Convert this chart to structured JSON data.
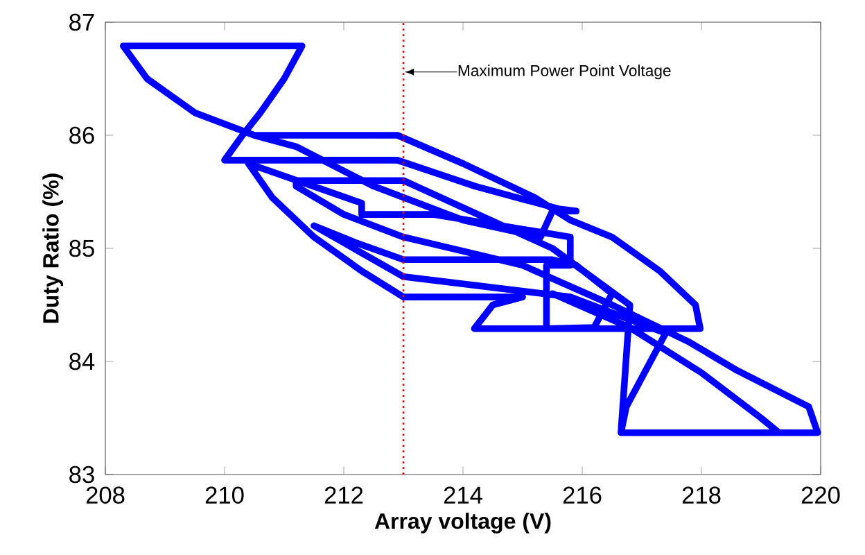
{
  "chart_data": {
    "type": "line",
    "xlabel": "Array voltage (V)",
    "ylabel": "Duty Ratio (%)",
    "xlim": [
      208,
      220
    ],
    "ylim": [
      83,
      87
    ],
    "xticks": [
      208,
      210,
      212,
      214,
      216,
      218,
      220
    ],
    "yticks": [
      83,
      84,
      85,
      86,
      87
    ],
    "grid": false,
    "series": [
      {
        "color": "#0000ff",
        "x": [
          212.9,
          210.5,
          209.5,
          208.7,
          208.3,
          211.3,
          211.0,
          210.6,
          210.3,
          210.0,
          212.9,
          214.2,
          215.6,
          215.9,
          215.5,
          215.3,
          214.0,
          212.5,
          211.2,
          210.5,
          212.9,
          214.0,
          215.2,
          215.8,
          216.5,
          217.3,
          217.9,
          217.98,
          216.0,
          214.19,
          214.5,
          215.0,
          213.0,
          212.3,
          211.5,
          210.8,
          210.4,
          212.3,
          212.3,
          213.5,
          215.8,
          215.8,
          215.4,
          215.4,
          216.2,
          216.5,
          215.9,
          215.5,
          213.0,
          212.2,
          211.5,
          213.0,
          215.8,
          217.4,
          216.74,
          216.65,
          219.95,
          219.8,
          218.6,
          217.8,
          216.5,
          215.0,
          213.0,
          212.0,
          211.2,
          211.2,
          213.0,
          215.5,
          216.8,
          216.65,
          219.3,
          219.0,
          218.0,
          216.8,
          215.5
        ],
        "values": [
          86.0,
          86.0,
          86.2,
          86.5,
          86.79,
          86.79,
          86.5,
          86.2,
          86.0,
          85.78,
          85.78,
          85.55,
          85.35,
          85.33,
          85.33,
          85.1,
          85.25,
          85.55,
          85.9,
          86.0,
          86.0,
          85.75,
          85.45,
          85.25,
          85.1,
          84.8,
          84.5,
          84.29,
          84.29,
          84.29,
          84.5,
          84.57,
          84.57,
          84.8,
          85.1,
          85.45,
          85.75,
          85.4,
          85.3,
          85.3,
          85.1,
          84.85,
          84.85,
          84.29,
          84.3,
          84.6,
          84.85,
          84.9,
          84.9,
          85.05,
          85.2,
          84.75,
          84.57,
          84.25,
          83.6,
          83.37,
          83.37,
          83.6,
          83.92,
          84.17,
          84.5,
          84.85,
          85.1,
          85.3,
          85.55,
          85.6,
          85.6,
          85.0,
          84.5,
          83.37,
          83.37,
          83.5,
          83.9,
          84.3,
          84.6
        ]
      }
    ],
    "ref_lines": [
      {
        "axis": "x",
        "value": 213,
        "label": "Maximum Power Point Voltage",
        "color": "#ff0000",
        "line_style": "dotted"
      }
    ]
  }
}
